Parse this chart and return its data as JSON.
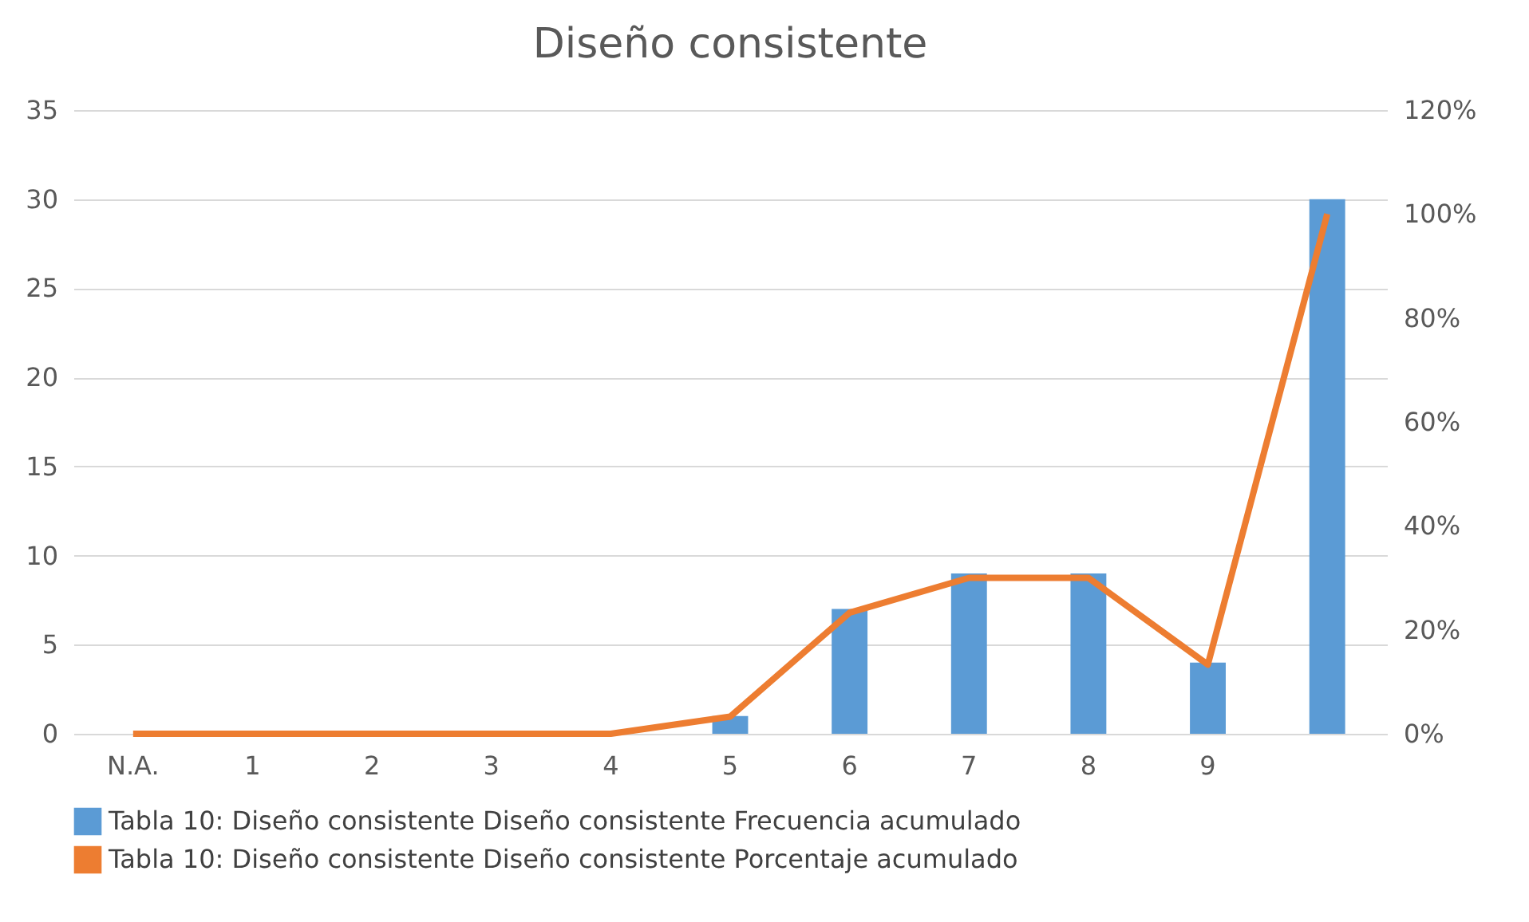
{
  "chart_data": {
    "type": "bar",
    "title": "Diseño consistente",
    "categories": [
      "N.A.",
      "1",
      "2",
      "3",
      "4",
      "5",
      "6",
      "7",
      "8",
      "9",
      null
    ],
    "series": [
      {
        "name": "Tabla 10: Diseño consistente  Diseño consistente Frecuencia acumulado",
        "color": "#5b9bd5",
        "values": [
          0,
          0,
          0,
          0,
          0,
          1,
          7,
          9,
          9,
          4,
          30
        ]
      },
      {
        "name": "Tabla 10: Diseño consistente  Diseño consistente Porcentaje acumulado",
        "type": "line",
        "axis": "y2",
        "color": "#ed7d31",
        "values": [
          0,
          0,
          0,
          0,
          0,
          3.3,
          23.3,
          30,
          30,
          13.3,
          100
        ]
      }
    ],
    "ylim": [
      0,
      35
    ],
    "yticks": [
      0,
      5,
      10,
      15,
      20,
      25,
      30,
      35
    ],
    "y2lim": [
      0,
      120
    ],
    "y2ticks": [
      {
        "value": 0,
        "label": "0%"
      },
      {
        "value": 20,
        "label": "20%"
      },
      {
        "value": 40,
        "label": "40%"
      },
      {
        "value": 60,
        "label": "60%"
      },
      {
        "value": 80,
        "label": "80%"
      },
      {
        "value": 100,
        "label": "100%"
      },
      {
        "value": 120,
        "label": "120%"
      }
    ],
    "grid": "y",
    "legend": "bottom",
    "marker": "none",
    "line_style": "solid"
  }
}
